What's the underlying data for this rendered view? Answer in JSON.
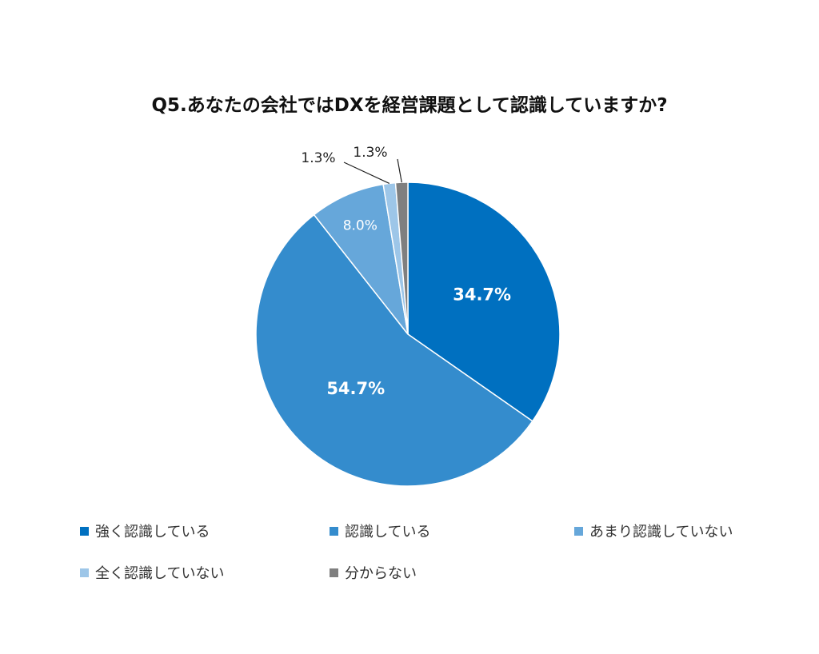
{
  "chart_data": {
    "type": "pie",
    "title": "Q5.あなたの会社ではDXを経営課題として認識していますか?",
    "categories": [
      "強く認識している",
      "認識している",
      "あまり認識していない",
      "全く認識していない",
      "分からない"
    ],
    "values": [
      34.7,
      54.7,
      8.0,
      1.3,
      1.3
    ],
    "labels": [
      "34.7%",
      "54.7%",
      "8.0%",
      "1.3%",
      "1.3%"
    ],
    "colors": [
      "#0070c0",
      "#348ccd",
      "#66a7da",
      "#9dc6e8",
      "#7f7f7f"
    ],
    "legend_position": "bottom"
  }
}
